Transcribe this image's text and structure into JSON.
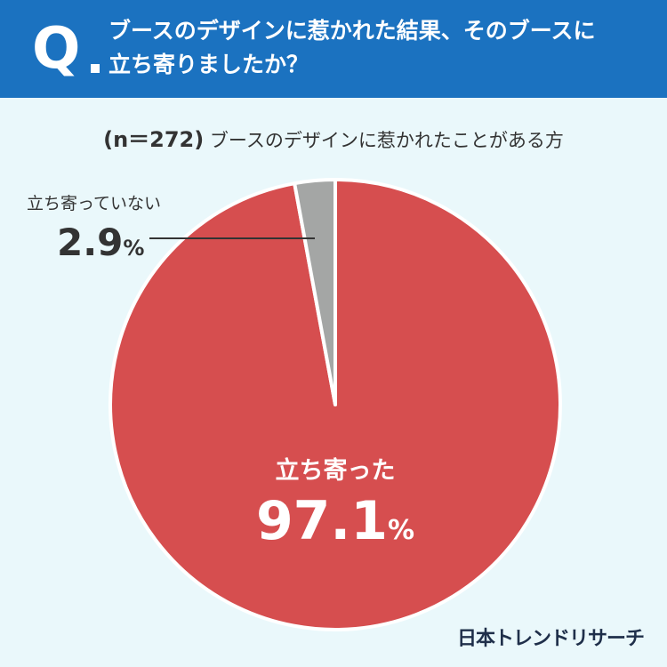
{
  "header": {
    "q_label": "Q",
    "question_line1": "ブースのデザインに惹かれた結果、そのブースに",
    "question_line2": "立ち寄りましたか？"
  },
  "subtitle": {
    "n_text": "(n＝272)",
    "description": "ブースのデザインに惹かれたことがある方"
  },
  "brand": {
    "logo_text": "日本トレンドリサーチ"
  },
  "colors": {
    "header_bg": "#1b72c0",
    "page_bg": "#eaf8fb",
    "slice_main": "#d64e4f",
    "slice_minor": "#a4a6a5",
    "text_dark": "#333333"
  },
  "chart_data": {
    "type": "pie",
    "title": "",
    "slices": [
      {
        "label": "立ち寄った",
        "value": 97.1,
        "value_text": "97.1",
        "unit": "%",
        "color": "#d64e4f"
      },
      {
        "label": "立ち寄っていない",
        "value": 2.9,
        "value_text": "2.9",
        "unit": "%",
        "color": "#a4a6a5"
      }
    ],
    "start_angle_deg": 0,
    "direction": "clockwise"
  }
}
